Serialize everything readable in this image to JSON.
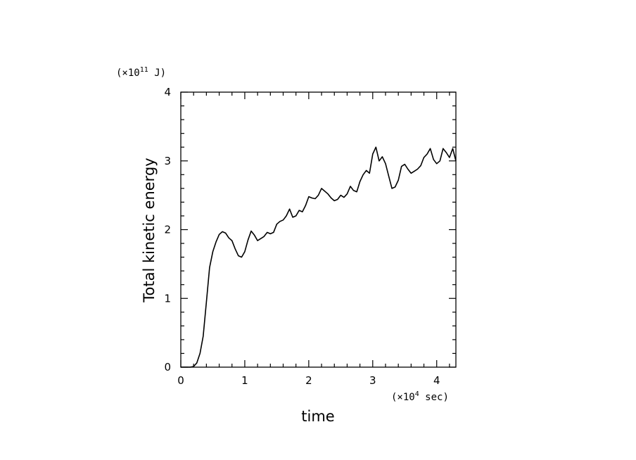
{
  "chart_data": {
    "type": "line",
    "xlabel": "time",
    "ylabel": "Total kinetic energy",
    "x_unit": {
      "prefix": "(×10",
      "exp": "4",
      "suffix": " sec)"
    },
    "y_unit": {
      "prefix": "(×10",
      "exp": "11",
      "suffix": " J)"
    },
    "xlim": [
      0,
      4.3
    ],
    "ylim": [
      0,
      4
    ],
    "x_ticks": [
      "0",
      "1",
      "2",
      "3",
      "4"
    ],
    "y_ticks": [
      "0",
      "1",
      "2",
      "3",
      "4"
    ],
    "grid": false,
    "series": [
      {
        "x": [
          0,
          0.15,
          0.2,
          0.25,
          0.3,
          0.35,
          0.4,
          0.45,
          0.5,
          0.55,
          0.6,
          0.65,
          0.7,
          0.75,
          0.8,
          0.85,
          0.9,
          0.95,
          1.0,
          1.05,
          1.1,
          1.15,
          1.2,
          1.25,
          1.3,
          1.35,
          1.4,
          1.45,
          1.5,
          1.55,
          1.6,
          1.65,
          1.7,
          1.75,
          1.8,
          1.85,
          1.9,
          1.95,
          2.0,
          2.05,
          2.1,
          2.15,
          2.2,
          2.3,
          2.35,
          2.4,
          2.45,
          2.5,
          2.55,
          2.6,
          2.65,
          2.7,
          2.75,
          2.8,
          2.85,
          2.9,
          2.95,
          3.0,
          3.05,
          3.1,
          3.15,
          3.2,
          3.25,
          3.3,
          3.35,
          3.4,
          3.45,
          3.5,
          3.55,
          3.6,
          3.65,
          3.7,
          3.75,
          3.8,
          3.85,
          3.9,
          3.95,
          4.0,
          4.05,
          4.1,
          4.15,
          4.2,
          4.25,
          4.3
        ],
        "y": [
          0,
          0,
          0.01,
          0.06,
          0.2,
          0.45,
          0.95,
          1.45,
          1.68,
          1.82,
          1.93,
          1.97,
          1.95,
          1.88,
          1.84,
          1.72,
          1.62,
          1.6,
          1.68,
          1.85,
          1.98,
          1.92,
          1.84,
          1.87,
          1.9,
          1.96,
          1.94,
          1.96,
          2.08,
          2.12,
          2.14,
          2.2,
          2.3,
          2.18,
          2.2,
          2.28,
          2.26,
          2.35,
          2.48,
          2.46,
          2.45,
          2.5,
          2.6,
          2.52,
          2.46,
          2.42,
          2.44,
          2.5,
          2.47,
          2.52,
          2.63,
          2.57,
          2.55,
          2.7,
          2.8,
          2.86,
          2.82,
          3.1,
          3.2,
          3.0,
          3.06,
          2.96,
          2.78,
          2.6,
          2.62,
          2.72,
          2.92,
          2.95,
          2.88,
          2.82,
          2.85,
          2.88,
          2.93,
          3.05,
          3.1,
          3.18,
          3.02,
          2.96,
          3.0,
          3.18,
          3.12,
          3.05,
          3.18,
          3.0
        ]
      }
    ]
  }
}
